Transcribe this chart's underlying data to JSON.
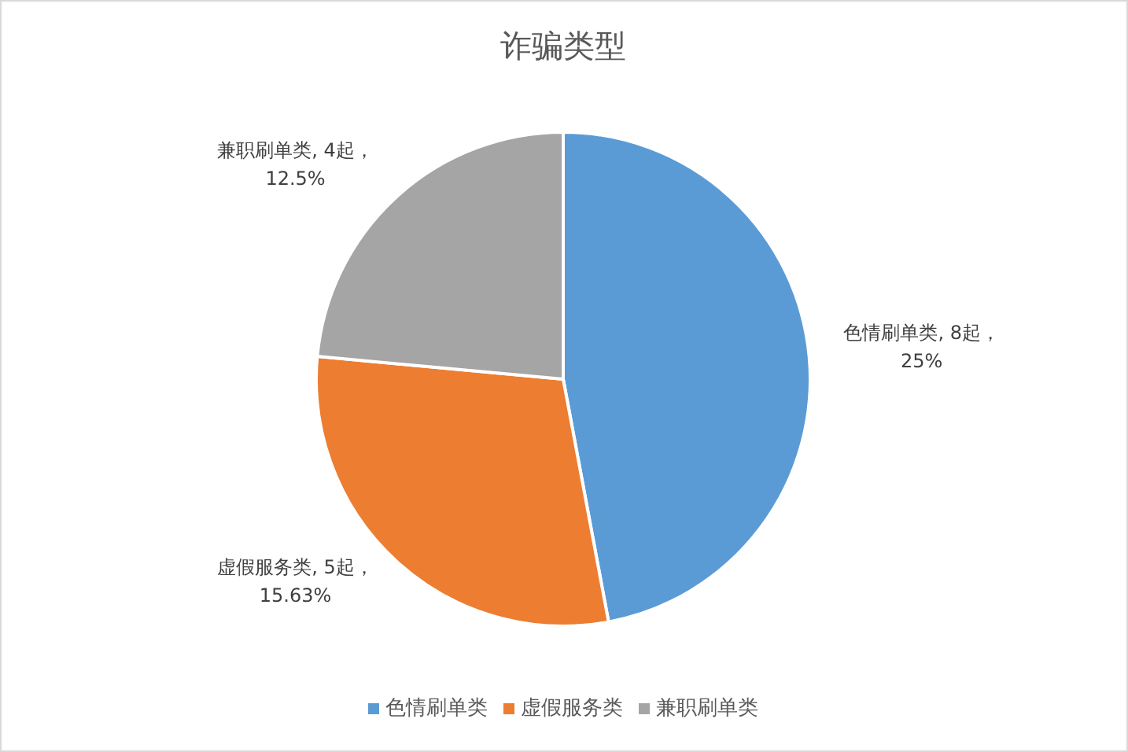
{
  "chart_data": {
    "type": "pie",
    "title": "诈骗类型",
    "categories": [
      "色情刷单类",
      "虚假服务类",
      "兼职刷单类"
    ],
    "values": [
      8,
      5,
      4
    ],
    "colors": [
      "#5b9bd5",
      "#ed7d31",
      "#a5a5a5"
    ],
    "value_labels": [
      ", 8起，\n25%",
      ", 5起，\n15.63%",
      ", 4起，\n12.5%"
    ],
    "legend": "bottom"
  }
}
